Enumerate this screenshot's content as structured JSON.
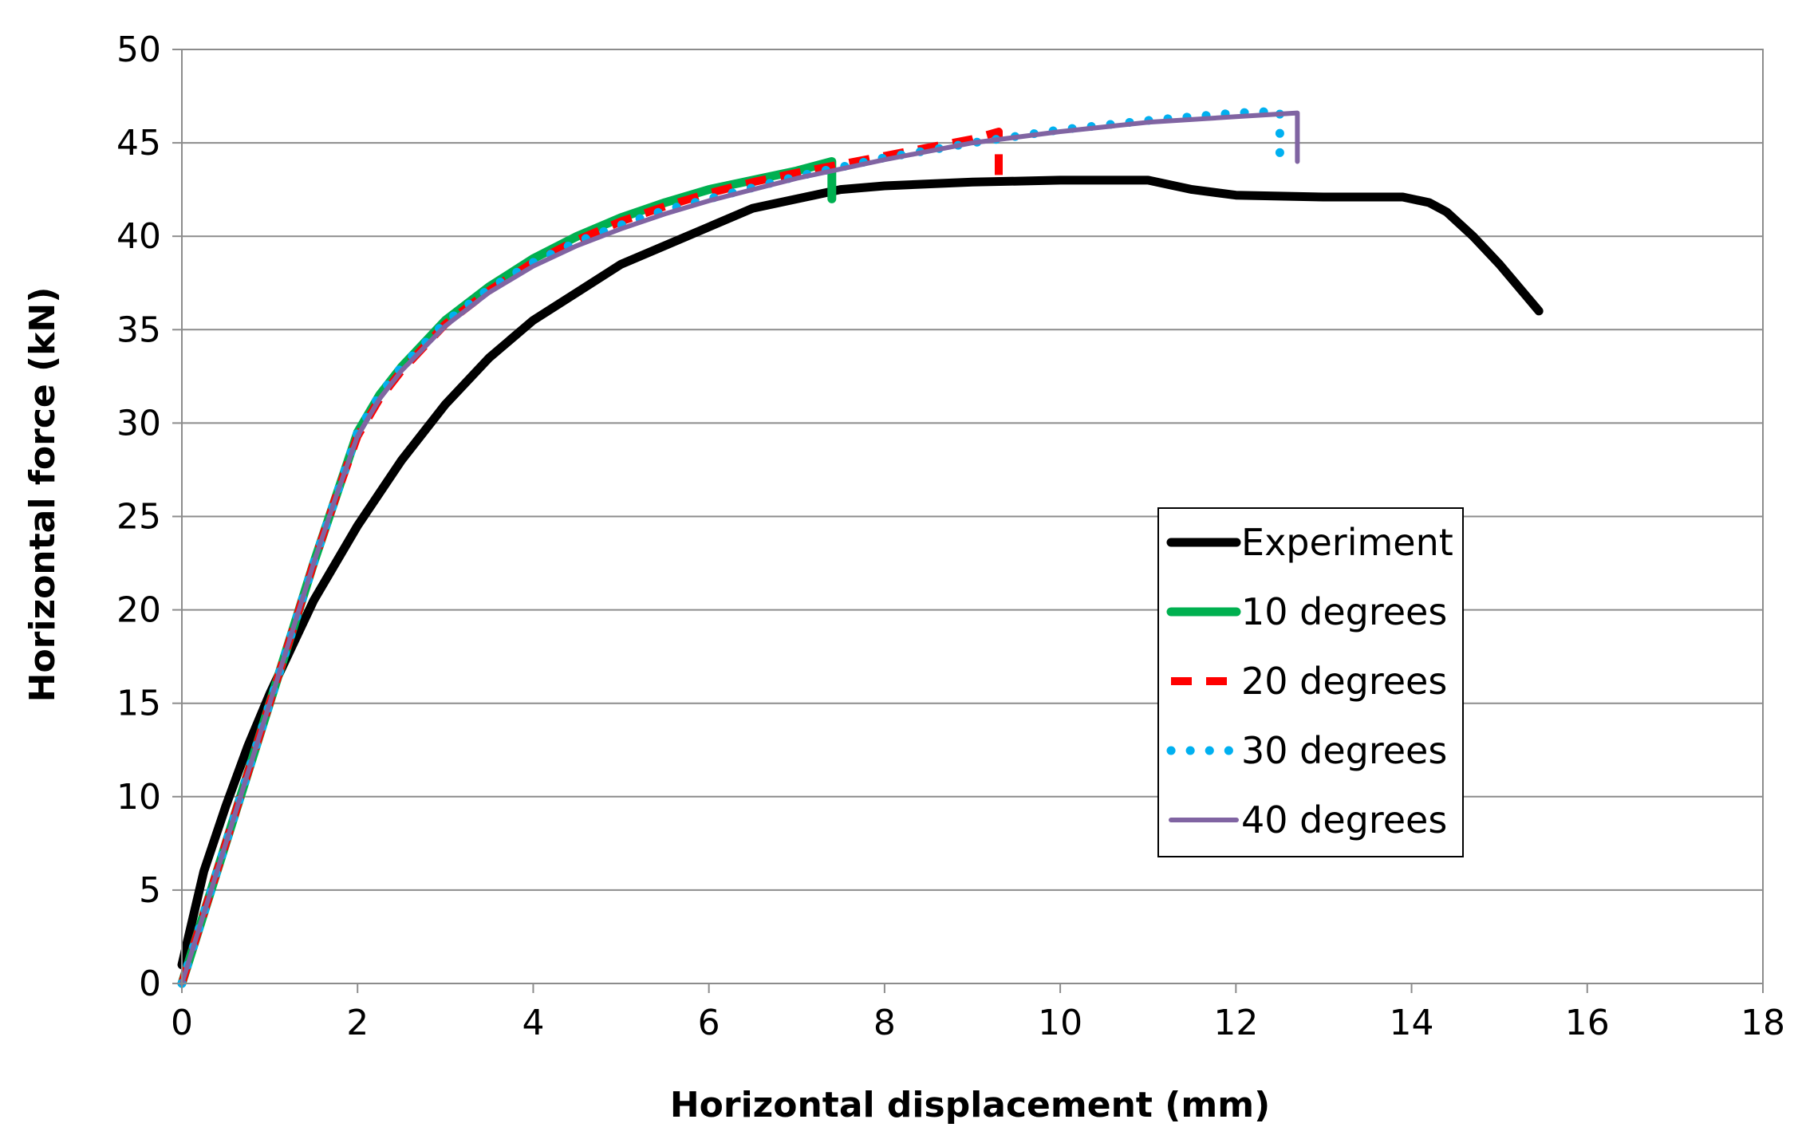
{
  "chart_data": {
    "type": "line",
    "xlabel": "Horizontal displacement (mm)",
    "ylabel": "Horizontal force (kN)",
    "xlim": [
      0,
      18
    ],
    "ylim": [
      0,
      50
    ],
    "xticks": [
      0,
      2,
      4,
      6,
      8,
      10,
      12,
      14,
      16,
      18
    ],
    "yticks": [
      0,
      5,
      10,
      15,
      20,
      25,
      30,
      35,
      40,
      45,
      50
    ],
    "grid": "horizontal",
    "legend_position": "right-middle",
    "series": [
      {
        "name": "Experiment",
        "color": "#000000",
        "style": "solid-thick",
        "x": [
          0,
          0.25,
          0.5,
          0.75,
          1.0,
          1.25,
          1.5,
          2.0,
          2.5,
          3.0,
          3.5,
          4.0,
          4.5,
          5.0,
          5.5,
          6.0,
          6.5,
          7.0,
          7.5,
          8.0,
          9.0,
          10.0,
          11.0,
          11.5,
          12.0,
          13.0,
          13.9,
          14.2,
          14.4,
          14.7,
          15.0,
          15.45
        ],
        "y": [
          1,
          6,
          9.5,
          12.7,
          15.5,
          18,
          20.5,
          24.5,
          28,
          31,
          33.5,
          35.5,
          37,
          38.5,
          39.5,
          40.5,
          41.5,
          42,
          42.5,
          42.7,
          42.9,
          43,
          43,
          42.5,
          42.2,
          42.1,
          42.1,
          41.8,
          41.3,
          40,
          38.5,
          36
        ]
      },
      {
        "name": "10 degrees",
        "color": "#00b050",
        "style": "solid-thick",
        "x": [
          0,
          0.5,
          1.0,
          1.5,
          1.75,
          2.0,
          2.25,
          2.5,
          3.0,
          3.5,
          4.0,
          4.5,
          5.0,
          5.5,
          6.0,
          6.5,
          7.0,
          7.4,
          7.4
        ],
        "y": [
          0,
          7.5,
          15,
          22.5,
          26,
          29.5,
          31.5,
          33,
          35.5,
          37.3,
          38.8,
          40,
          41,
          41.8,
          42.5,
          43,
          43.5,
          44,
          42
        ]
      },
      {
        "name": "20 degrees",
        "color": "#ff0000",
        "style": "dashed",
        "x": [
          0,
          0.5,
          1.0,
          1.5,
          1.75,
          2.0,
          2.25,
          2.5,
          3.0,
          3.5,
          4.0,
          4.5,
          5.0,
          5.5,
          6.0,
          6.5,
          7.0,
          8.0,
          9.0,
          9.3,
          9.3
        ],
        "y": [
          0,
          7.5,
          15,
          22.5,
          26,
          29.3,
          31.3,
          32.8,
          35.3,
          37.1,
          38.6,
          39.8,
          40.8,
          41.6,
          42.3,
          42.9,
          43.4,
          44.3,
          45.2,
          45.6,
          43
        ]
      },
      {
        "name": "30 degrees",
        "color": "#00b0f0",
        "style": "dotted",
        "x": [
          0,
          0.5,
          1.0,
          1.5,
          1.75,
          2.0,
          2.25,
          2.5,
          3.0,
          3.5,
          4.0,
          4.5,
          5.0,
          5.5,
          6.0,
          6.5,
          7.0,
          8.0,
          9.0,
          10.0,
          11.0,
          12.0,
          12.5,
          12.5
        ],
        "y": [
          0,
          7.5,
          15,
          22.5,
          26,
          29.5,
          31.5,
          33,
          35.4,
          37.2,
          38.6,
          39.7,
          40.6,
          41.4,
          42,
          42.6,
          43.2,
          44.2,
          45,
          45.7,
          46.2,
          46.6,
          46.7,
          44
        ]
      },
      {
        "name": "40 degrees",
        "color": "#8064a2",
        "style": "solid-thin",
        "x": [
          0,
          0.5,
          1.0,
          1.5,
          1.75,
          2.0,
          2.25,
          2.5,
          3.0,
          3.5,
          4.0,
          4.5,
          5.0,
          5.5,
          6.0,
          6.5,
          7.0,
          8.0,
          9.0,
          10.0,
          11.0,
          12.0,
          12.7,
          12.7
        ],
        "y": [
          0,
          7.5,
          15,
          22.5,
          26,
          29.3,
          31.3,
          32.8,
          35.2,
          37,
          38.4,
          39.5,
          40.4,
          41.2,
          41.9,
          42.5,
          43.1,
          44.1,
          45,
          45.6,
          46.1,
          46.4,
          46.6,
          44
        ]
      }
    ]
  }
}
